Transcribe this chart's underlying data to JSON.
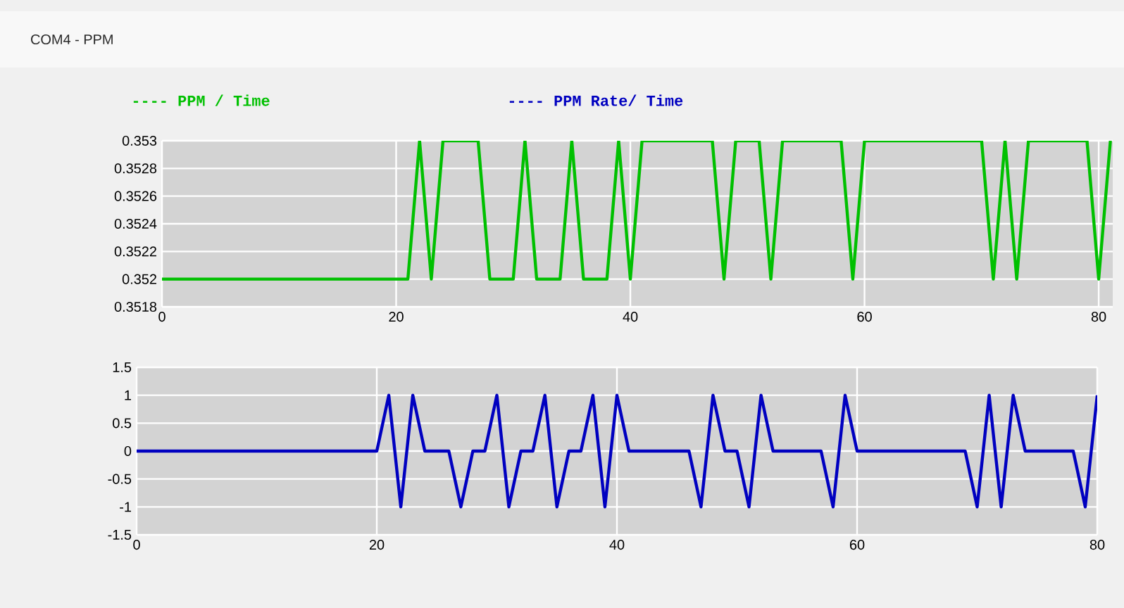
{
  "chart_data": [
    {
      "type": "line",
      "title": "COM4 - PPM",
      "xlim": [
        0,
        81.2
      ],
      "ylim": [
        0.3518,
        0.353
      ],
      "xticks": [
        0,
        20,
        40,
        60,
        80
      ],
      "yticks": [
        0.3518,
        0.352,
        0.3522,
        0.3524,
        0.3526,
        0.3528,
        0.353
      ],
      "grid": true,
      "legend": "top left",
      "series": [
        {
          "name": "---- PPM / Time",
          "color": "#00c000",
          "x": [
            0,
            1,
            2,
            3,
            4,
            5,
            6,
            7,
            8,
            9,
            10,
            11,
            12,
            13,
            14,
            15,
            16,
            17,
            18,
            19,
            20,
            21,
            22,
            23,
            24,
            25,
            26,
            27,
            28,
            29,
            30,
            31,
            32,
            33,
            34,
            35,
            36,
            37,
            38,
            39,
            40,
            41,
            42,
            43,
            44,
            45,
            46,
            47,
            48,
            49,
            50,
            51,
            52,
            53,
            54,
            55,
            56,
            57,
            58,
            59,
            60,
            61,
            62,
            63,
            64,
            65,
            66,
            67,
            68,
            69,
            70,
            71,
            72,
            73,
            74,
            75,
            76,
            77,
            78,
            79,
            80,
            81
          ],
          "values": [
            0.352,
            0.352,
            0.352,
            0.352,
            0.352,
            0.352,
            0.352,
            0.352,
            0.352,
            0.352,
            0.352,
            0.352,
            0.352,
            0.352,
            0.352,
            0.352,
            0.352,
            0.352,
            0.352,
            0.352,
            0.352,
            0.352,
            0.353,
            0.352,
            0.353,
            0.353,
            0.353,
            0.353,
            0.352,
            0.352,
            0.352,
            0.353,
            0.352,
            0.352,
            0.352,
            0.353,
            0.352,
            0.352,
            0.352,
            0.353,
            0.352,
            0.353,
            0.353,
            0.353,
            0.353,
            0.353,
            0.353,
            0.353,
            0.352,
            0.353,
            0.353,
            0.353,
            0.352,
            0.353,
            0.353,
            0.353,
            0.353,
            0.353,
            0.353,
            0.352,
            0.353,
            0.353,
            0.353,
            0.353,
            0.353,
            0.353,
            0.353,
            0.353,
            0.353,
            0.353,
            0.353,
            0.352,
            0.353,
            0.352,
            0.353,
            0.353,
            0.353,
            0.353,
            0.353,
            0.353,
            0.352,
            0.353
          ]
        }
      ]
    },
    {
      "type": "line",
      "xlim": [
        0,
        80
      ],
      "ylim": [
        -1.5,
        1.5
      ],
      "xticks": [
        0,
        20,
        40,
        60,
        80
      ],
      "yticks": [
        -1.5,
        -1,
        -0.5,
        0,
        0.5,
        1,
        1.5
      ],
      "grid": true,
      "legend": "top",
      "series": [
        {
          "name": "---- PPM Rate/ Time",
          "color": "#0000c0",
          "x": [
            0,
            1,
            2,
            3,
            4,
            5,
            6,
            7,
            8,
            9,
            10,
            11,
            12,
            13,
            14,
            15,
            16,
            17,
            18,
            19,
            20,
            21,
            22,
            23,
            24,
            25,
            26,
            27,
            28,
            29,
            30,
            31,
            32,
            33,
            34,
            35,
            36,
            37,
            38,
            39,
            40,
            41,
            42,
            43,
            44,
            45,
            46,
            47,
            48,
            49,
            50,
            51,
            52,
            53,
            54,
            55,
            56,
            57,
            58,
            59,
            60,
            61,
            62,
            63,
            64,
            65,
            66,
            67,
            68,
            69,
            70,
            71,
            72,
            73,
            74,
            75,
            76,
            77,
            78,
            79,
            80
          ],
          "values": [
            0,
            0,
            0,
            0,
            0,
            0,
            0,
            0,
            0,
            0,
            0,
            0,
            0,
            0,
            0,
            0,
            0,
            0,
            0,
            0,
            0,
            1,
            -1,
            1,
            0,
            0,
            0,
            -1,
            0,
            0,
            1,
            -1,
            0,
            0,
            1,
            -1,
            0,
            0,
            1,
            -1,
            1,
            0,
            0,
            0,
            0,
            0,
            0,
            -1,
            1,
            0,
            0,
            -1,
            1,
            0,
            0,
            0,
            0,
            0,
            -1,
            1,
            0,
            0,
            0,
            0,
            0,
            0,
            0,
            0,
            0,
            0,
            -1,
            1,
            -1,
            1,
            0,
            0,
            0,
            0,
            0,
            -1,
            1
          ]
        }
      ]
    }
  ]
}
